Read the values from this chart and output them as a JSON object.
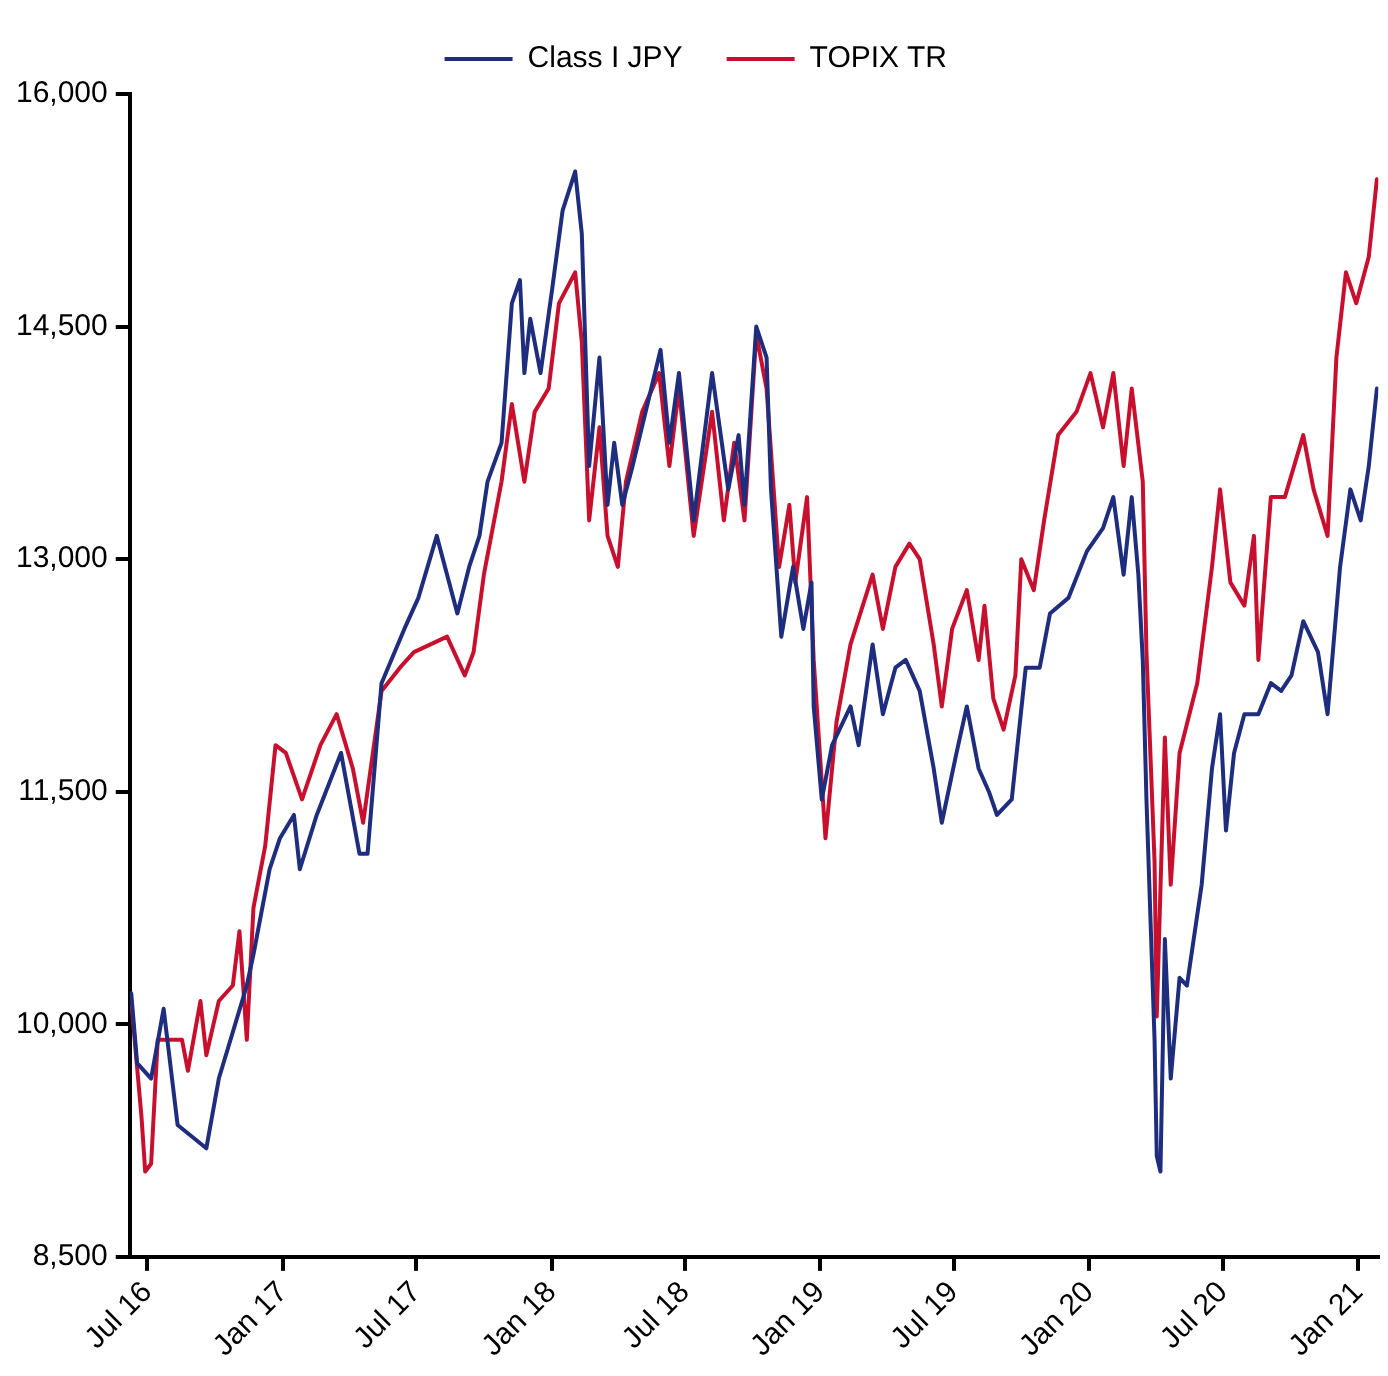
{
  "chart_data": {
    "type": "line",
    "xlim": [
      "2016-06-07",
      "2021-01-28"
    ],
    "xticks": [
      {
        "value": "2016-07-01",
        "label": "Jul 16"
      },
      {
        "value": "2017-01-01",
        "label": "Jan 17"
      },
      {
        "value": "2017-07-01",
        "label": "Jul 17"
      },
      {
        "value": "2018-01-01",
        "label": "Jan 18"
      },
      {
        "value": "2018-07-01",
        "label": "Jul 18"
      },
      {
        "value": "2019-01-01",
        "label": "Jan 19"
      },
      {
        "value": "2019-07-01",
        "label": "Jul 19"
      },
      {
        "value": "2020-01-01",
        "label": "Jan 20"
      },
      {
        "value": "2020-07-01",
        "label": "Jul 20"
      },
      {
        "value": "2021-01-01",
        "label": "Jan 21"
      }
    ],
    "ylim": [
      8500,
      16000
    ],
    "yticks": [
      {
        "value": 8500,
        "label": "8,500"
      },
      {
        "value": 10000,
        "label": "10,000"
      },
      {
        "value": 11500,
        "label": "11,500"
      },
      {
        "value": 13000,
        "label": "13,000"
      },
      {
        "value": 14500,
        "label": "14,500"
      },
      {
        "value": 16000,
        "label": "16,000"
      }
    ],
    "grid": false,
    "legend": "top",
    "marker": "none",
    "line_style": "solid",
    "series": [
      {
        "name": "Class I JPY",
        "color": "#1e2d7d",
        "x": [
          "2016-06-09",
          "2016-06-17",
          "2016-07-06",
          "2016-07-23",
          "2016-08-11",
          "2016-09-19",
          "2016-10-06",
          "2016-11-13",
          "2016-11-22",
          "2016-12-14",
          "2016-12-28",
          "2017-01-16",
          "2017-01-24",
          "2017-02-16",
          "2017-03-21",
          "2017-04-15",
          "2017-04-26",
          "2017-05-15",
          "2017-06-15",
          "2017-07-04",
          "2017-07-29",
          "2017-08-12",
          "2017-08-26",
          "2017-09-11",
          "2017-09-25",
          "2017-10-06",
          "2017-10-25",
          "2017-11-08",
          "2017-11-19",
          "2017-11-25",
          "2017-12-03",
          "2017-12-17",
          "2018-01-02",
          "2018-01-16",
          "2018-02-02",
          "2018-02-11",
          "2018-02-21",
          "2018-03-07",
          "2018-03-18",
          "2018-03-27",
          "2018-04-07",
          "2018-04-21",
          "2018-05-29",
          "2018-06-10",
          "2018-06-23",
          "2018-07-13",
          "2018-08-07",
          "2018-08-29",
          "2018-09-12",
          "2018-09-20",
          "2018-10-06",
          "2018-10-20",
          "2018-10-26",
          "2018-11-09",
          "2018-11-25",
          "2018-12-09",
          "2018-12-20",
          "2018-12-23",
          "2019-01-03",
          "2019-01-17",
          "2019-02-11",
          "2019-02-22",
          "2019-03-13",
          "2019-03-27",
          "2019-04-13",
          "2019-04-27",
          "2019-05-16",
          "2019-06-04",
          "2019-06-15",
          "2019-07-05",
          "2019-07-19",
          "2019-08-04",
          "2019-08-18",
          "2019-08-29",
          "2019-09-18",
          "2019-10-07",
          "2019-10-26",
          "2019-11-09",
          "2019-12-04",
          "2019-12-29",
          "2020-01-20",
          "2020-02-03",
          "2020-02-17",
          "2020-02-28",
          "2020-03-08",
          "2020-03-14",
          "2020-03-19",
          "2020-03-30",
          "2020-04-02",
          "2020-04-07",
          "2020-04-13",
          "2020-04-21",
          "2020-05-03",
          "2020-05-13",
          "2020-06-02",
          "2020-06-16",
          "2020-06-27",
          "2020-07-05",
          "2020-07-16",
          "2020-07-30",
          "2020-08-18",
          "2020-09-04",
          "2020-09-18",
          "2020-10-02",
          "2020-10-18",
          "2020-11-07",
          "2020-11-20",
          "2020-12-07",
          "2020-12-21",
          "2021-01-04",
          "2021-01-15",
          "2021-01-26"
        ],
        "values": [
          10200,
          9750,
          9650,
          10100,
          9350,
          9200,
          9650,
          10250,
          10450,
          11000,
          11200,
          11350,
          11000,
          11350,
          11750,
          11100,
          11100,
          12200,
          12550,
          12750,
          13150,
          12900,
          12650,
          12950,
          13150,
          13500,
          13750,
          14650,
          14800,
          14200,
          14550,
          14200,
          14750,
          15250,
          15500,
          15100,
          13600,
          14300,
          13350,
          13750,
          13350,
          13600,
          14350,
          13750,
          14200,
          13250,
          14200,
          13450,
          13800,
          13350,
          14500,
          14300,
          13450,
          12500,
          12950,
          12550,
          12850,
          12050,
          11450,
          11800,
          12050,
          11800,
          12450,
          12000,
          12300,
          12350,
          12150,
          11650,
          11300,
          11750,
          12050,
          11650,
          11500,
          11350,
          11450,
          12300,
          12300,
          12650,
          12750,
          13050,
          13200,
          13400,
          12900,
          13400,
          12900,
          12350,
          11450,
          9900,
          9150,
          9050,
          10550,
          9650,
          10300,
          10250,
          10900,
          11650,
          12000,
          11250,
          11750,
          12000,
          12000,
          12200,
          12150,
          12250,
          12600,
          12400,
          12000,
          12950,
          13450,
          13250,
          13600,
          14100
        ]
      },
      {
        "name": "TOPIX TR",
        "color": "#c8102e",
        "x": [
          "2016-06-09",
          "2016-06-23",
          "2016-06-28",
          "2016-07-06",
          "2016-07-15",
          "2016-08-17",
          "2016-08-25",
          "2016-09-11",
          "2016-09-19",
          "2016-10-06",
          "2016-10-25",
          "2016-11-03",
          "2016-11-13",
          "2016-11-22",
          "2016-12-08",
          "2016-12-22",
          "2017-01-05",
          "2017-01-27",
          "2017-02-21",
          "2017-03-15",
          "2017-04-06",
          "2017-04-20",
          "2017-05-15",
          "2017-06-09",
          "2017-06-28",
          "2017-08-12",
          "2017-09-05",
          "2017-09-17",
          "2017-10-01",
          "2017-10-25",
          "2017-11-08",
          "2017-11-25",
          "2017-12-09",
          "2017-12-28",
          "2018-01-11",
          "2018-02-02",
          "2018-02-11",
          "2018-02-21",
          "2018-03-07",
          "2018-03-18",
          "2018-04-01",
          "2018-04-12",
          "2018-05-04",
          "2018-05-27",
          "2018-06-10",
          "2018-06-23",
          "2018-07-13",
          "2018-08-07",
          "2018-08-23",
          "2018-09-06",
          "2018-09-20",
          "2018-10-06",
          "2018-10-20",
          "2018-11-06",
          "2018-11-20",
          "2018-11-28",
          "2018-12-14",
          "2018-12-23",
          "2019-01-08",
          "2019-01-23",
          "2019-02-11",
          "2019-03-13",
          "2019-03-27",
          "2019-04-13",
          "2019-05-02",
          "2019-05-16",
          "2019-06-04",
          "2019-06-15",
          "2019-06-29",
          "2019-07-19",
          "2019-08-04",
          "2019-08-12",
          "2019-08-24",
          "2019-09-07",
          "2019-09-23",
          "2019-10-01",
          "2019-10-18",
          "2019-11-01",
          "2019-11-20",
          "2019-12-15",
          "2020-01-03",
          "2020-01-20",
          "2020-02-03",
          "2020-02-17",
          "2020-02-28",
          "2020-03-14",
          "2020-03-19",
          "2020-03-30",
          "2020-04-02",
          "2020-04-13",
          "2020-04-21",
          "2020-05-03",
          "2020-05-27",
          "2020-06-16",
          "2020-06-27",
          "2020-07-11",
          "2020-07-30",
          "2020-08-12",
          "2020-08-18",
          "2020-09-04",
          "2020-09-23",
          "2020-10-18",
          "2020-11-01",
          "2020-11-20",
          "2020-12-02",
          "2020-12-15",
          "2020-12-29",
          "2021-01-15",
          "2021-01-26"
        ],
        "values": [
          10150,
          9400,
          9050,
          9100,
          9900,
          9900,
          9700,
          10150,
          9800,
          10150,
          10250,
          10600,
          9900,
          10750,
          11150,
          11800,
          11750,
          11450,
          11800,
          12000,
          11650,
          11300,
          12150,
          12300,
          12400,
          12500,
          12250,
          12400,
          12900,
          13500,
          14000,
          13500,
          13950,
          14100,
          14650,
          14850,
          14400,
          13250,
          13850,
          13150,
          12950,
          13500,
          13950,
          14200,
          13600,
          14100,
          13150,
          13950,
          13250,
          13750,
          13250,
          14450,
          14100,
          12950,
          13350,
          12850,
          13400,
          12350,
          11200,
          11950,
          12450,
          12900,
          12550,
          12950,
          13100,
          13000,
          12450,
          12050,
          12550,
          12800,
          12350,
          12700,
          12100,
          11900,
          12250,
          13000,
          12800,
          13250,
          13800,
          13950,
          14200,
          13850,
          14200,
          13600,
          14100,
          13500,
          12400,
          11050,
          10050,
          11850,
          10900,
          11750,
          12200,
          12950,
          13450,
          12850,
          12700,
          13150,
          12350,
          13400,
          13400,
          13800,
          13450,
          13150,
          14300,
          14850,
          14650,
          14950,
          15450
        ]
      }
    ]
  }
}
